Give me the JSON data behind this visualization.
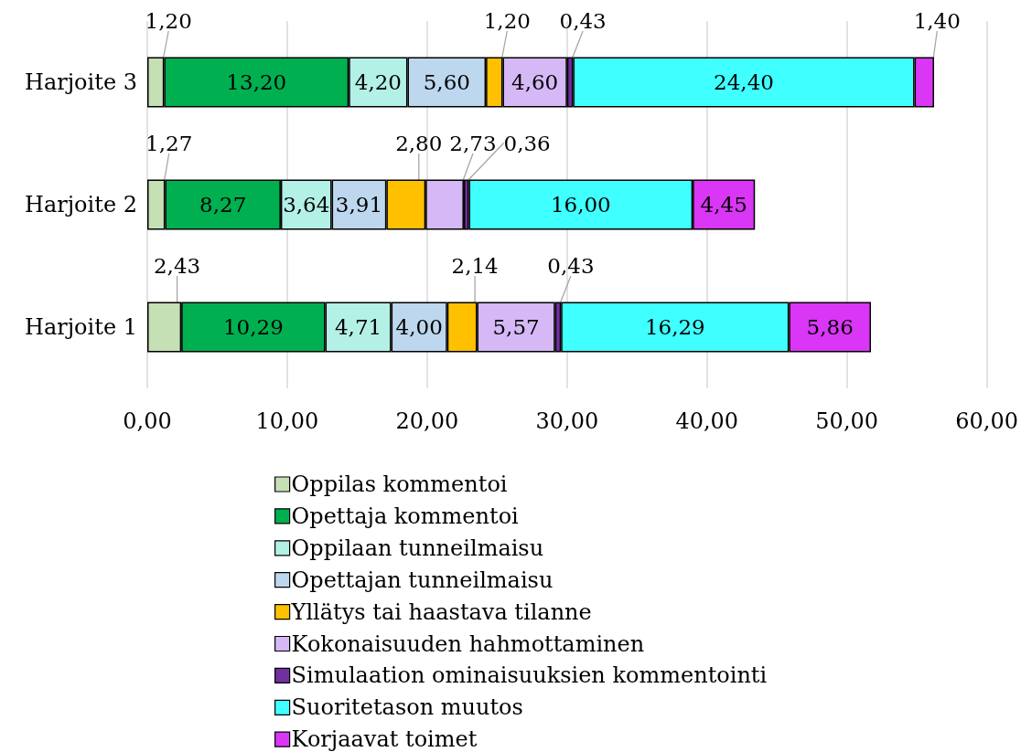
{
  "chart_data": {
    "type": "bar",
    "orientation": "horizontal",
    "stacked": true,
    "categories": [
      "Harjoite 3",
      "Harjoite 2",
      "Harjoite 1"
    ],
    "series": [
      {
        "name": "Oppilas kommentoi",
        "color": "#c5e0b4",
        "values": [
          1.2,
          1.27,
          2.43
        ],
        "value_labels": [
          "1,20",
          "1,27",
          "2,43"
        ]
      },
      {
        "name": "Opettaja kommentoi",
        "color": "#00b050",
        "values": [
          13.2,
          8.27,
          10.29
        ],
        "value_labels": [
          "13,20",
          "8,27",
          "10,29"
        ]
      },
      {
        "name": "Oppilaan tunneilmaisu",
        "color": "#b3f0e6",
        "values": [
          4.2,
          3.64,
          4.71
        ],
        "value_labels": [
          "4,20",
          "3,64",
          "4,71"
        ]
      },
      {
        "name": "Opettajan tunneilmaisu",
        "color": "#bdd7ee",
        "values": [
          5.6,
          3.91,
          4.0
        ],
        "value_labels": [
          "5,60",
          "3,91",
          "4,00"
        ]
      },
      {
        "name": "Yllätys tai haastava tilanne",
        "color": "#ffc000",
        "values": [
          1.2,
          2.8,
          2.14
        ],
        "value_labels": [
          "1,20",
          "2,80",
          "2,14"
        ]
      },
      {
        "name": "Kokonaisuuden hahmottaminen",
        "color": "#d6b8f6",
        "values": [
          4.6,
          2.73,
          5.57
        ],
        "value_labels": [
          "4,60",
          "2,73",
          "5,57"
        ]
      },
      {
        "name": "Simulaation ominaisuuksien kommentointi",
        "color": "#7030a0",
        "values": [
          0.43,
          0.36,
          0.43
        ],
        "value_labels": [
          "0,43",
          "0,36",
          "0,43"
        ]
      },
      {
        "name": "Suoritetason muutos",
        "color": "#40ffff",
        "values": [
          24.4,
          16.0,
          16.29
        ],
        "value_labels": [
          "24,40",
          "16,00",
          "16,29"
        ]
      },
      {
        "name": "Korjaavat toimet",
        "color": "#d936f5",
        "values": [
          1.4,
          4.45,
          5.86
        ],
        "value_labels": [
          "1,40",
          "4,45",
          "5,86"
        ]
      }
    ],
    "xlim": [
      0,
      60
    ],
    "xticks": [
      {
        "value": 0,
        "label": "0,00"
      },
      {
        "value": 10,
        "label": "10,00"
      },
      {
        "value": 20,
        "label": "20,00"
      },
      {
        "value": 30,
        "label": "30,00"
      },
      {
        "value": 40,
        "label": "40,00"
      },
      {
        "value": 50,
        "label": "50,00"
      },
      {
        "value": 60,
        "label": "60,00"
      }
    ],
    "grid": "x",
    "legend": "bottom"
  }
}
